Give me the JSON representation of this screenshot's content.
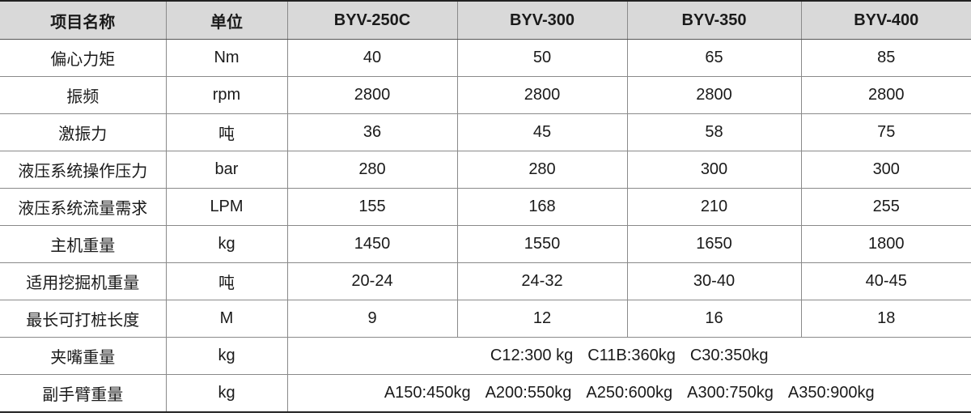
{
  "table": {
    "header": [
      "项目名称",
      "单位",
      "BYV-250C",
      "BYV-300",
      "BYV-350",
      "BYV-400"
    ],
    "rows": [
      [
        "偏心力矩",
        "Nm",
        "40",
        "50",
        "65",
        "85"
      ],
      [
        "振频",
        "rpm",
        "2800",
        "2800",
        "2800",
        "2800"
      ],
      [
        "激振力",
        "吨",
        "36",
        "45",
        "58",
        "75"
      ],
      [
        "液压系统操作压力",
        "bar",
        "280",
        "280",
        "300",
        "300"
      ],
      [
        "液压系统流量需求",
        "LPM",
        "155",
        "168",
        "210",
        "255"
      ],
      [
        "主机重量",
        "kg",
        "1450",
        "1550",
        "1650",
        "1800"
      ],
      [
        "适用挖掘机重量",
        "吨",
        "20-24",
        "24-32",
        "30-40",
        "40-45"
      ],
      [
        "最长可打桩长度",
        "M",
        "9",
        "12",
        "16",
        "18"
      ],
      [
        "夹嘴重量",
        "kg",
        [
          "C12:300 kg",
          "C11B:360kg",
          "C30:350kg"
        ]
      ],
      [
        "副手臂重量",
        "kg",
        [
          "A150:450kg",
          "A200:550kg",
          "A250:600kg",
          "A300:750kg",
          "A350:900kg"
        ]
      ]
    ]
  }
}
